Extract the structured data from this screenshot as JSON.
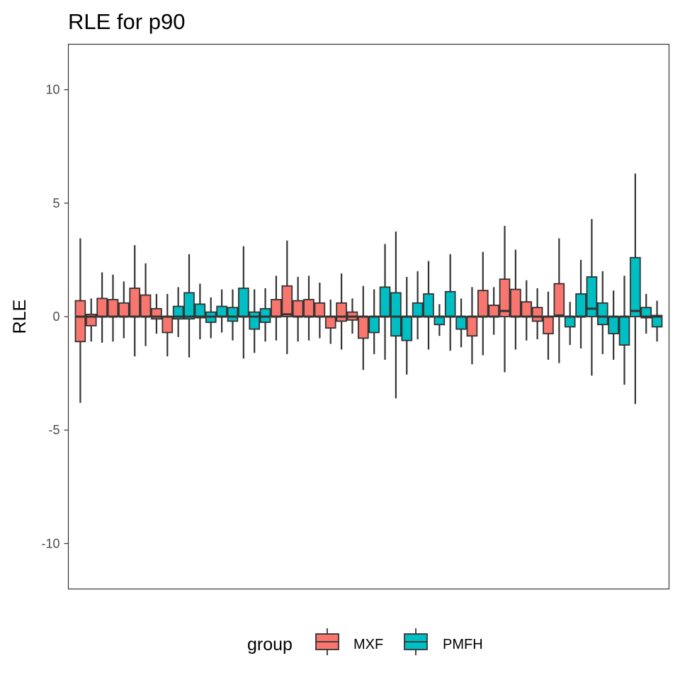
{
  "chart_data": {
    "type": "boxplot",
    "title": "RLE for p90",
    "xlabel": "",
    "ylabel": "RLE",
    "ylim": [
      -12,
      12
    ],
    "y_ticks": [
      -10,
      -5,
      0,
      5,
      10
    ],
    "y_tick_labels": [
      "-10",
      "-5",
      "0",
      "5",
      "10"
    ],
    "grid": false,
    "legend": {
      "title": "group",
      "position": "bottom",
      "entries": [
        {
          "label": "MXF",
          "color": "#F8766D"
        },
        {
          "label": "PMFH",
          "color": "#00BFC4"
        }
      ]
    },
    "colors": {
      "MXF": "#F8766D",
      "PMFH": "#00BFC4",
      "outline": "#333333"
    },
    "series": [
      {
        "group": "MXF",
        "lower_whisker": -3.8,
        "q1": -1.1,
        "median": 0.0,
        "q3": 0.7,
        "upper_whisker": 3.45
      },
      {
        "group": "MXF",
        "lower_whisker": -1.1,
        "q1": -0.4,
        "median": 0.0,
        "q3": 0.1,
        "upper_whisker": 0.8
      },
      {
        "group": "MXF",
        "lower_whisker": -1.15,
        "q1": 0.0,
        "median": 0.0,
        "q3": 0.8,
        "upper_whisker": 1.95
      },
      {
        "group": "MXF",
        "lower_whisker": -1.1,
        "q1": 0.0,
        "median": 0.0,
        "q3": 0.75,
        "upper_whisker": 1.85
      },
      {
        "group": "MXF",
        "lower_whisker": -0.95,
        "q1": 0.0,
        "median": 0.0,
        "q3": 0.6,
        "upper_whisker": 1.55
      },
      {
        "group": "MXF",
        "lower_whisker": -1.75,
        "q1": 0.0,
        "median": 0.0,
        "q3": 1.25,
        "upper_whisker": 3.15
      },
      {
        "group": "MXF",
        "lower_whisker": -1.3,
        "q1": 0.0,
        "median": 0.0,
        "q3": 0.95,
        "upper_whisker": 2.35
      },
      {
        "group": "MXF",
        "lower_whisker": -0.75,
        "q1": -0.1,
        "median": 0.0,
        "q3": 0.35,
        "upper_whisker": 1.0
      },
      {
        "group": "MXF",
        "lower_whisker": -1.75,
        "q1": -0.7,
        "median": 0.0,
        "q3": 0.0,
        "upper_whisker": 1.0
      },
      {
        "group": "PMFH",
        "lower_whisker": -0.9,
        "q1": -0.1,
        "median": 0.0,
        "q3": 0.45,
        "upper_whisker": 1.3
      },
      {
        "group": "PMFH",
        "lower_whisker": -1.8,
        "q1": -0.1,
        "median": 0.0,
        "q3": 1.05,
        "upper_whisker": 2.75
      },
      {
        "group": "PMFH",
        "lower_whisker": -1.0,
        "q1": -0.05,
        "median": 0.0,
        "q3": 0.55,
        "upper_whisker": 1.45
      },
      {
        "group": "PMFH",
        "lower_whisker": -0.95,
        "q1": -0.25,
        "median": 0.0,
        "q3": 0.2,
        "upper_whisker": 0.85
      },
      {
        "group": "PMFH",
        "lower_whisker": -0.7,
        "q1": 0.0,
        "median": 0.0,
        "q3": 0.45,
        "upper_whisker": 1.2
      },
      {
        "group": "PMFH",
        "lower_whisker": -1.05,
        "q1": -0.2,
        "median": 0.0,
        "q3": 0.4,
        "upper_whisker": 1.2
      },
      {
        "group": "PMFH",
        "lower_whisker": -1.85,
        "q1": 0.0,
        "median": 0.0,
        "q3": 1.25,
        "upper_whisker": 3.1
      },
      {
        "group": "PMFH",
        "lower_whisker": -1.6,
        "q1": -0.55,
        "median": 0.0,
        "q3": 0.2,
        "upper_whisker": 1.2
      },
      {
        "group": "PMFH",
        "lower_whisker": -1.1,
        "q1": -0.25,
        "median": 0.0,
        "q3": 0.35,
        "upper_whisker": 1.25
      },
      {
        "group": "MXF",
        "lower_whisker": -1.05,
        "q1": 0.0,
        "median": 0.0,
        "q3": 0.75,
        "upper_whisker": 1.8
      },
      {
        "group": "MXF",
        "lower_whisker": -1.65,
        "q1": 0.0,
        "median": 0.1,
        "q3": 1.35,
        "upper_whisker": 3.35
      },
      {
        "group": "MXF",
        "lower_whisker": -1.1,
        "q1": 0.0,
        "median": 0.0,
        "q3": 0.7,
        "upper_whisker": 1.75
      },
      {
        "group": "MXF",
        "lower_whisker": -1.05,
        "q1": 0.0,
        "median": 0.0,
        "q3": 0.75,
        "upper_whisker": 1.8
      },
      {
        "group": "MXF",
        "lower_whisker": -0.95,
        "q1": 0.0,
        "median": 0.0,
        "q3": 0.6,
        "upper_whisker": 1.5
      },
      {
        "group": "MXF",
        "lower_whisker": -1.2,
        "q1": -0.5,
        "median": 0.0,
        "q3": 0.0,
        "upper_whisker": 0.75
      },
      {
        "group": "MXF",
        "lower_whisker": -1.45,
        "q1": -0.2,
        "median": 0.0,
        "q3": 0.6,
        "upper_whisker": 1.9
      },
      {
        "group": "MXF",
        "lower_whisker": -0.75,
        "q1": -0.15,
        "median": 0.0,
        "q3": 0.2,
        "upper_whisker": 0.8
      },
      {
        "group": "MXF",
        "lower_whisker": -2.35,
        "q1": -0.95,
        "median": 0.0,
        "q3": 0.0,
        "upper_whisker": 1.35
      },
      {
        "group": "PMFH",
        "lower_whisker": -1.65,
        "q1": -0.7,
        "median": 0.0,
        "q3": 0.0,
        "upper_whisker": 1.2
      },
      {
        "group": "PMFH",
        "lower_whisker": -1.9,
        "q1": 0.0,
        "median": 0.0,
        "q3": 1.3,
        "upper_whisker": 3.2
      },
      {
        "group": "PMFH",
        "lower_whisker": -3.6,
        "q1": -0.85,
        "median": 0.0,
        "q3": 1.05,
        "upper_whisker": 3.75
      },
      {
        "group": "PMFH",
        "lower_whisker": -2.55,
        "q1": -1.05,
        "median": 0.0,
        "q3": 0.0,
        "upper_whisker": 1.75
      },
      {
        "group": "PMFH",
        "lower_whisker": -1.0,
        "q1": 0.0,
        "median": 0.0,
        "q3": 0.6,
        "upper_whisker": 2.0
      },
      {
        "group": "PMFH",
        "lower_whisker": -1.45,
        "q1": 0.0,
        "median": 0.0,
        "q3": 1.0,
        "upper_whisker": 2.45
      },
      {
        "group": "PMFH",
        "lower_whisker": -0.85,
        "q1": -0.35,
        "median": 0.0,
        "q3": 0.0,
        "upper_whisker": 0.55
      },
      {
        "group": "PMFH",
        "lower_whisker": -1.5,
        "q1": 0.0,
        "median": 0.0,
        "q3": 1.1,
        "upper_whisker": 2.75
      },
      {
        "group": "PMFH",
        "lower_whisker": -1.35,
        "q1": -0.55,
        "median": 0.0,
        "q3": 0.0,
        "upper_whisker": 0.8
      },
      {
        "group": "MXF",
        "lower_whisker": -2.1,
        "q1": -0.85,
        "median": 0.0,
        "q3": 0.0,
        "upper_whisker": 1.3
      },
      {
        "group": "MXF",
        "lower_whisker": -1.7,
        "q1": 0.0,
        "median": 0.0,
        "q3": 1.15,
        "upper_whisker": 2.85
      },
      {
        "group": "MXF",
        "lower_whisker": -0.8,
        "q1": 0.0,
        "median": 0.0,
        "q3": 0.5,
        "upper_whisker": 1.3
      },
      {
        "group": "MXF",
        "lower_whisker": -2.45,
        "q1": 0.0,
        "median": 0.25,
        "q3": 1.65,
        "upper_whisker": 4.0
      },
      {
        "group": "MXF",
        "lower_whisker": -1.45,
        "q1": 0.0,
        "median": 0.0,
        "q3": 1.2,
        "upper_whisker": 2.95
      },
      {
        "group": "MXF",
        "lower_whisker": -1.05,
        "q1": 0.0,
        "median": 0.0,
        "q3": 0.65,
        "upper_whisker": 1.6
      },
      {
        "group": "MXF",
        "lower_whisker": -1.0,
        "q1": -0.2,
        "median": 0.0,
        "q3": 0.4,
        "upper_whisker": 1.25
      },
      {
        "group": "MXF",
        "lower_whisker": -1.9,
        "q1": -0.75,
        "median": 0.0,
        "q3": 0.0,
        "upper_whisker": 1.1
      },
      {
        "group": "MXF",
        "lower_whisker": -2.05,
        "q1": 0.0,
        "median": 0.05,
        "q3": 1.45,
        "upper_whisker": 3.45
      },
      {
        "group": "PMFH",
        "lower_whisker": -1.25,
        "q1": -0.45,
        "median": 0.0,
        "q3": 0.0,
        "upper_whisker": 0.65
      },
      {
        "group": "PMFH",
        "lower_whisker": -1.4,
        "q1": 0.0,
        "median": 0.0,
        "q3": 1.0,
        "upper_whisker": 2.5
      },
      {
        "group": "PMFH",
        "lower_whisker": -2.6,
        "q1": 0.0,
        "median": 0.35,
        "q3": 1.75,
        "upper_whisker": 4.3
      },
      {
        "group": "PMFH",
        "lower_whisker": -1.65,
        "q1": -0.35,
        "median": 0.0,
        "q3": 0.6,
        "upper_whisker": 2.0
      },
      {
        "group": "PMFH",
        "lower_whisker": -1.9,
        "q1": -0.75,
        "median": 0.0,
        "q3": 0.0,
        "upper_whisker": 1.15
      },
      {
        "group": "PMFH",
        "lower_whisker": -3.0,
        "q1": -1.25,
        "median": 0.0,
        "q3": 0.0,
        "upper_whisker": 1.8
      },
      {
        "group": "PMFH",
        "lower_whisker": -3.85,
        "q1": 0.0,
        "median": 0.25,
        "q3": 2.6,
        "upper_whisker": 6.3
      },
      {
        "group": "PMFH",
        "lower_whisker": -0.75,
        "q1": -0.05,
        "median": 0.0,
        "q3": 0.4,
        "upper_whisker": 1.0
      },
      {
        "group": "PMFH",
        "lower_whisker": -1.1,
        "q1": -0.45,
        "median": 0.0,
        "q3": 0.05,
        "upper_whisker": 0.7
      }
    ]
  }
}
